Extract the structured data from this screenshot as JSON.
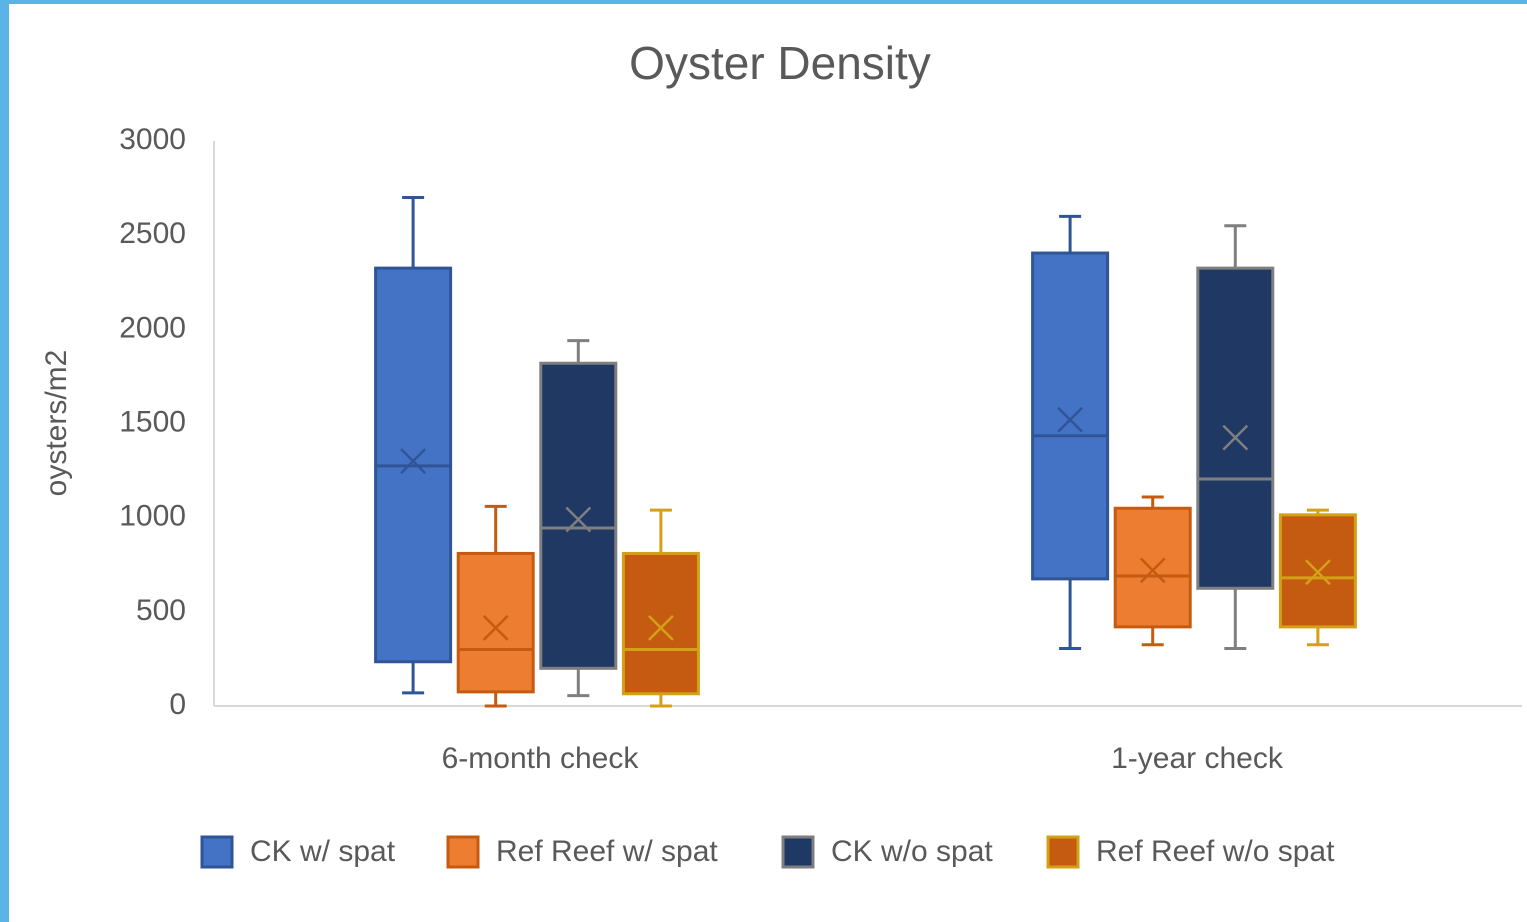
{
  "chart_data": {
    "type": "box",
    "title": "Oyster Density",
    "y_label": "oysters/m2",
    "categories": [
      "6-month check",
      "1-year check"
    ],
    "ylim": [
      0,
      3000
    ],
    "yticks": [
      0,
      500,
      1000,
      1500,
      2000,
      2500,
      3000
    ],
    "grid": false,
    "legend": "bottom",
    "series": [
      {
        "name": "CK w/ spat",
        "color": "#4472c4",
        "edge_color": "#2f5597",
        "min": [
          70,
          305
        ],
        "q1": [
          235,
          675
        ],
        "median": [
          1275,
          1435
        ],
        "q3": [
          2325,
          2405
        ],
        "max": [
          2700,
          2600
        ],
        "mean": [
          1300,
          1520
        ]
      },
      {
        "name": "Ref Reef w/ spat",
        "color": "#ed7d31",
        "edge_color": "#c55a11",
        "min": [
          0,
          325
        ],
        "q1": [
          75,
          420
        ],
        "median": [
          300,
          690
        ],
        "q3": [
          810,
          1050
        ],
        "max": [
          1060,
          1110
        ],
        "mean": [
          415,
          720
        ]
      },
      {
        "name": "CK w/o spat",
        "color": "#203864",
        "edge_color": "#7f7f7f",
        "min": [
          55,
          305
        ],
        "q1": [
          200,
          625
        ],
        "median": [
          945,
          1205
        ],
        "q3": [
          1820,
          2325
        ],
        "max": [
          1940,
          2550
        ],
        "mean": [
          990,
          1425
        ]
      },
      {
        "name": "Ref Reef w/o spat",
        "color": "#c55a11",
        "edge_color": "#d4a017",
        "min": [
          0,
          325
        ],
        "q1": [
          65,
          420
        ],
        "median": [
          300,
          680
        ],
        "q3": [
          810,
          1015
        ],
        "max": [
          1040,
          1040
        ],
        "mean": [
          415,
          710
        ]
      }
    ]
  }
}
